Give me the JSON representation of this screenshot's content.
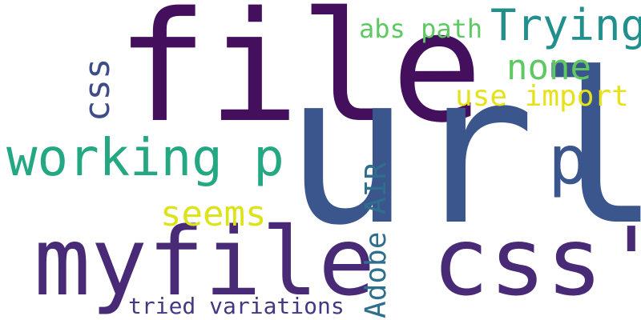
{
  "words": [
    {
      "id": "file",
      "text": "file",
      "color": "#440f5c"
    },
    {
      "id": "url",
      "text": "url",
      "color": "#3a568c"
    },
    {
      "id": "myfile_css",
      "text": "myfile css'",
      "color": "#482a76"
    },
    {
      "id": "working_p",
      "text": "working p",
      "color": "#24a884"
    },
    {
      "id": "p",
      "text": "p",
      "color": "#3a568c"
    },
    {
      "id": "trying",
      "text": "Trying",
      "color": "#21908d"
    },
    {
      "id": "none",
      "text": "none",
      "color": "#5ec962"
    },
    {
      "id": "use_import",
      "text": "use import",
      "color": "#e6e21a"
    },
    {
      "id": "abs_path",
      "text": "abs path",
      "color": "#5ec962"
    },
    {
      "id": "seems",
      "text": "seems",
      "color": "#dce319"
    },
    {
      "id": "tried_variations",
      "text": "tried variations",
      "color": "#453882"
    },
    {
      "id": "css",
      "text": "css",
      "color": "#3e4d8a"
    },
    {
      "id": "adobe_air",
      "text": "Adobe AIR",
      "color": "#2e6f8e"
    }
  ]
}
